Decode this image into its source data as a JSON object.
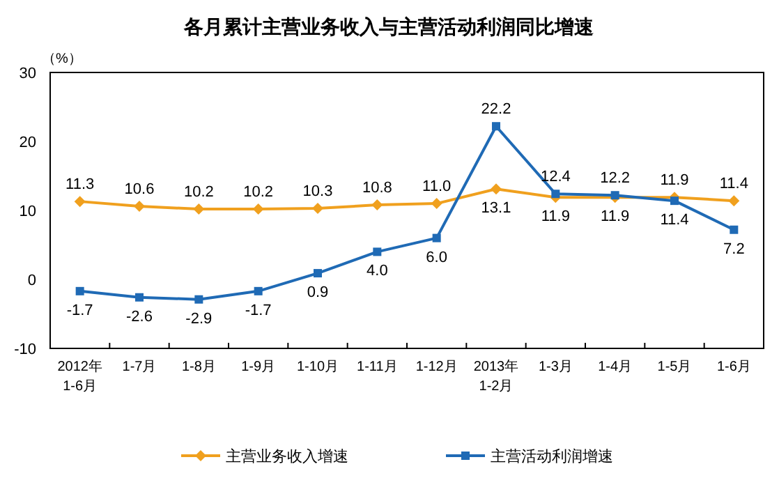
{
  "chart_data": {
    "type": "line",
    "title": "各月累计主营业务收入与主营活动利润同比增速",
    "ylabel": "（%）",
    "categories": [
      "2012年\n1-6月",
      "1-7月",
      "1-8月",
      "1-9月",
      "1-10月",
      "1-11月",
      "1-12月",
      "2013年\n1-2月",
      "1-3月",
      "1-4月",
      "1-5月",
      "1-6月"
    ],
    "series": [
      {
        "name": "主营业务收入增速",
        "color": "#f0a01e",
        "marker": "diamond",
        "values": [
          11.3,
          10.6,
          10.2,
          10.2,
          10.3,
          10.8,
          11.0,
          13.1,
          11.9,
          11.9,
          11.9,
          11.4
        ],
        "value_labels": [
          "11.3",
          "10.6",
          "10.2",
          "10.2",
          "10.3",
          "10.8",
          "11.0",
          "13.1",
          "11.9",
          "11.9",
          "11.9",
          "11.4"
        ]
      },
      {
        "name": "主营活动利润增速",
        "color": "#1f6ab5",
        "marker": "square",
        "values": [
          -1.7,
          -2.6,
          -2.9,
          -1.7,
          0.9,
          4.0,
          6.0,
          22.2,
          12.4,
          12.2,
          11.4,
          7.2
        ],
        "value_labels": [
          "-1.7",
          "-2.6",
          "-2.9",
          "-1.7",
          "0.9",
          "4.0",
          "6.0",
          "22.2",
          "12.4",
          "12.2",
          "11.4",
          "7.2"
        ]
      }
    ],
    "ylim": [
      -10,
      30
    ],
    "yticks": [
      -10,
      0,
      10,
      20,
      30
    ],
    "grid": false,
    "legend": "bottom",
    "line_style": "solid"
  }
}
